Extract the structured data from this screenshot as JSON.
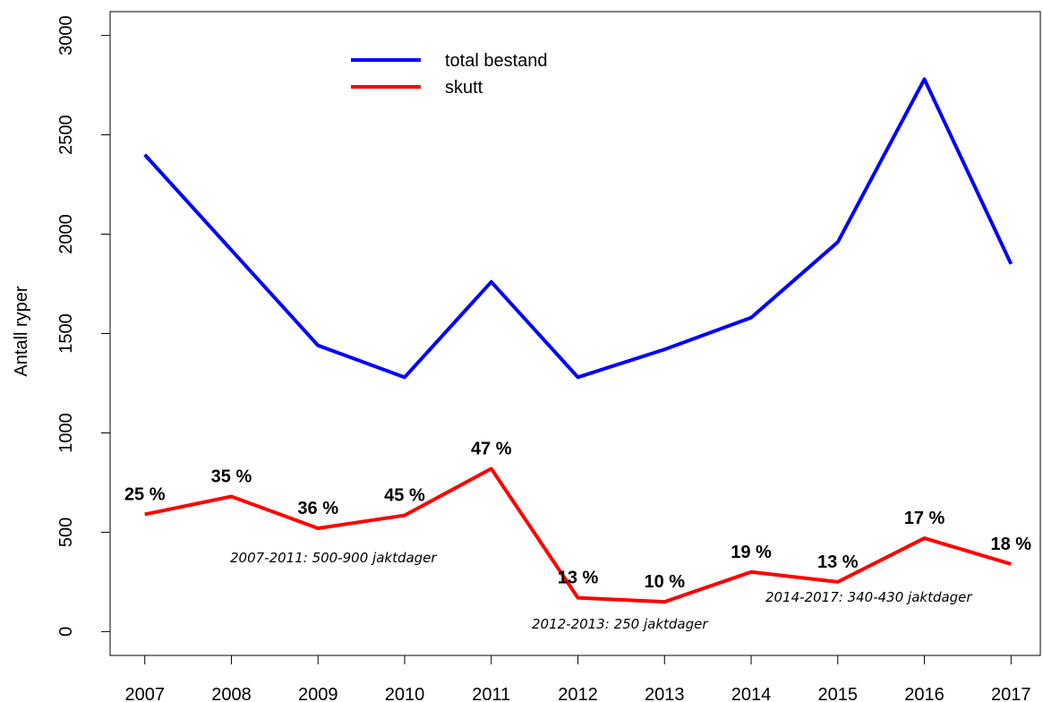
{
  "chart_data": {
    "type": "line",
    "y_label": "Antall ryper",
    "x": [
      2007,
      2008,
      2009,
      2010,
      2011,
      2012,
      2013,
      2014,
      2015,
      2016,
      2017
    ],
    "xlim": [
      2006.6,
      2017.4
    ],
    "xticks": [
      2007,
      2008,
      2009,
      2010,
      2011,
      2012,
      2013,
      2014,
      2015,
      2016,
      2017
    ],
    "ylim": [
      -120,
      3120
    ],
    "yticks": [
      0,
      500,
      1000,
      1500,
      2000,
      2500,
      3000
    ],
    "legend_position": "top",
    "series": [
      {
        "name": "total bestand",
        "color": "#0000ff",
        "values": [
          2400,
          1920,
          1440,
          1280,
          1760,
          1280,
          1420,
          1580,
          1960,
          2780,
          1850
        ]
      },
      {
        "name": "skutt",
        "color": "#ff0000",
        "values": [
          590,
          680,
          520,
          585,
          820,
          170,
          150,
          300,
          250,
          470,
          340
        ],
        "point_annotations": [
          "25 %",
          "35 %",
          "36 %",
          "45 %",
          "47 %",
          "13 %",
          "10 %",
          "19 %",
          "13 %",
          "17 %",
          "18 %"
        ]
      }
    ],
    "notes": [
      "2007-2011: 500-900 jaktdager",
      "2012-2013: 250 jaktdager",
      "2014-2017: 340-430 jaktdager"
    ]
  }
}
